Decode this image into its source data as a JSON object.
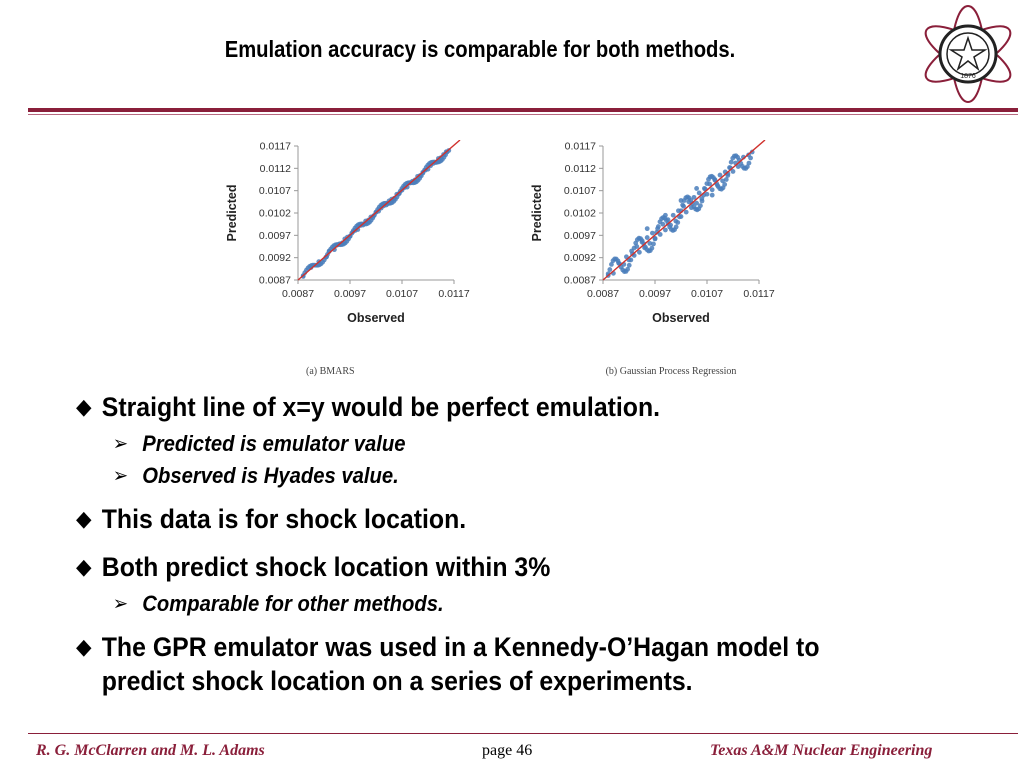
{
  "slide": {
    "title": "Emulation accuracy is comparable for both methods.",
    "footer_left": "R. G. McClarren and M. L. Adams",
    "footer_center": "page 46",
    "footer_right": "Texas A&M Nuclear Engineering",
    "logo_year": "1876"
  },
  "bullets": [
    {
      "text": "Straight line of x=y would be perfect emulation.",
      "sub": [
        "Predicted is emulator value",
        "Observed is Hyades value."
      ]
    },
    {
      "text": "This data is for shock location.",
      "sub": []
    },
    {
      "text": "Both predict shock location within 3%",
      "sub": [
        "Comparable for other methods."
      ]
    },
    {
      "text": "The GPR emulator was used in a Kennedy-O’Hagan model to predict shock location on a series of experiments.",
      "sub": []
    }
  ],
  "colors": {
    "accent": "#8a1f3a",
    "points": "#4a7ebb",
    "fit_line": "#d0312d"
  },
  "chart_data": [
    {
      "type": "scatter",
      "caption": "(a) BMARS",
      "xlabel": "Observed",
      "ylabel": "Predicted",
      "xlim": [
        0.0087,
        0.0117
      ],
      "ylim": [
        0.0087,
        0.0117
      ],
      "x_ticks": [
        "0.0087",
        "0.0097",
        "0.0107",
        "0.0117"
      ],
      "y_ticks": [
        "0.0087",
        "0.0092",
        "0.0097",
        "0.0102",
        "0.0107",
        "0.0112",
        "0.0117"
      ],
      "reference_line": "x=y",
      "spread": 8e-05,
      "points": [
        [
          0.0088,
          0.00878
        ],
        [
          0.00895,
          0.00898
        ],
        [
          0.0091,
          0.00911
        ],
        [
          0.00925,
          0.00922
        ],
        [
          0.0093,
          0.00935
        ],
        [
          0.0094,
          0.00938
        ],
        [
          0.00945,
          0.00948
        ],
        [
          0.0095,
          0.00951
        ],
        [
          0.00955,
          0.00953
        ],
        [
          0.0096,
          0.00962
        ],
        [
          0.00965,
          0.00966
        ],
        [
          0.0097,
          0.00968
        ],
        [
          0.00975,
          0.00977
        ],
        [
          0.0098,
          0.00981
        ],
        [
          0.00985,
          0.00983
        ],
        [
          0.0099,
          0.00992
        ],
        [
          0.00995,
          0.00993
        ],
        [
          0.01,
          0.01002
        ],
        [
          0.01005,
          0.01004
        ],
        [
          0.0101,
          0.01011
        ],
        [
          0.01015,
          0.01013
        ],
        [
          0.0102,
          0.01022
        ],
        [
          0.01025,
          0.01024
        ],
        [
          0.0103,
          0.01031
        ],
        [
          0.01035,
          0.01036
        ],
        [
          0.0104,
          0.01038
        ],
        [
          0.01045,
          0.01047
        ],
        [
          0.0105,
          0.01051
        ],
        [
          0.01055,
          0.01053
        ],
        [
          0.0106,
          0.01062
        ],
        [
          0.01065,
          0.01064
        ],
        [
          0.0107,
          0.01071
        ],
        [
          0.01075,
          0.01077
        ],
        [
          0.0108,
          0.01078
        ],
        [
          0.01085,
          0.01087
        ],
        [
          0.0109,
          0.01091
        ],
        [
          0.01095,
          0.01094
        ],
        [
          0.011,
          0.01102
        ],
        [
          0.01105,
          0.01104
        ],
        [
          0.0111,
          0.01111
        ],
        [
          0.01115,
          0.01116
        ],
        [
          0.0112,
          0.01118
        ],
        [
          0.01125,
          0.01126
        ],
        [
          0.0113,
          0.01131
        ],
        [
          0.01135,
          0.01133
        ],
        [
          0.0114,
          0.01142
        ],
        [
          0.01145,
          0.01144
        ],
        [
          0.0115,
          0.01151
        ],
        [
          0.01155,
          0.01157
        ],
        [
          0.0116,
          0.0116
        ]
      ]
    },
    {
      "type": "scatter",
      "caption": "(b) Gaussian Process Regression",
      "xlabel": "Observed",
      "ylabel": "Predicted",
      "xlim": [
        0.0087,
        0.0117
      ],
      "ylim": [
        0.0087,
        0.0117
      ],
      "x_ticks": [
        "0.0087",
        "0.0097",
        "0.0107",
        "0.0117"
      ],
      "y_ticks": [
        "0.0087",
        "0.0092",
        "0.0097",
        "0.0102",
        "0.0107",
        "0.0112",
        "0.0117"
      ],
      "reference_line": "x=y",
      "spread": 0.00025,
      "points": [
        [
          0.0088,
          0.00884
        ],
        [
          0.0089,
          0.00885
        ],
        [
          0.009,
          0.00908
        ],
        [
          0.0091,
          0.00905
        ],
        [
          0.00915,
          0.00922
        ],
        [
          0.0092,
          0.00915
        ],
        [
          0.00925,
          0.00935
        ],
        [
          0.0093,
          0.00925
        ],
        [
          0.00935,
          0.00945
        ],
        [
          0.0094,
          0.00932
        ],
        [
          0.00945,
          0.00955
        ],
        [
          0.0095,
          0.00942
        ],
        [
          0.00955,
          0.00965
        ],
        [
          0.0096,
          0.00952
        ],
        [
          0.00965,
          0.00975
        ],
        [
          0.0097,
          0.00962
        ],
        [
          0.00975,
          0.00985
        ],
        [
          0.0098,
          0.00972
        ],
        [
          0.00985,
          0.00995
        ],
        [
          0.0099,
          0.00982
        ],
        [
          0.00995,
          0.01005
        ],
        [
          0.01,
          0.00993
        ],
        [
          0.01005,
          0.01015
        ],
        [
          0.0101,
          0.01002
        ],
        [
          0.01015,
          0.01025
        ],
        [
          0.0102,
          0.01012
        ],
        [
          0.01025,
          0.01035
        ],
        [
          0.0103,
          0.01022
        ],
        [
          0.01035,
          0.01045
        ],
        [
          0.0104,
          0.01032
        ],
        [
          0.01045,
          0.01055
        ],
        [
          0.0105,
          0.01042
        ],
        [
          0.01055,
          0.01065
        ],
        [
          0.0106,
          0.01052
        ],
        [
          0.01065,
          0.01075
        ],
        [
          0.0107,
          0.01062
        ],
        [
          0.01075,
          0.01085
        ],
        [
          0.0108,
          0.01072
        ],
        [
          0.01085,
          0.01095
        ],
        [
          0.0109,
          0.01082
        ],
        [
          0.01095,
          0.01105
        ],
        [
          0.011,
          0.01092
        ],
        [
          0.01105,
          0.01112
        ],
        [
          0.0111,
          0.01104
        ],
        [
          0.01115,
          0.01121
        ],
        [
          0.0112,
          0.01113
        ],
        [
          0.01125,
          0.01132
        ],
        [
          0.0113,
          0.01124
        ],
        [
          0.0114,
          0.01145
        ],
        [
          0.0115,
          0.0115
        ],
        [
          0.00955,
          0.00985
        ],
        [
          0.0099,
          0.01015
        ],
        [
          0.0102,
          0.01048
        ],
        [
          0.0105,
          0.01075
        ],
        [
          0.0108,
          0.0106
        ]
      ]
    }
  ]
}
